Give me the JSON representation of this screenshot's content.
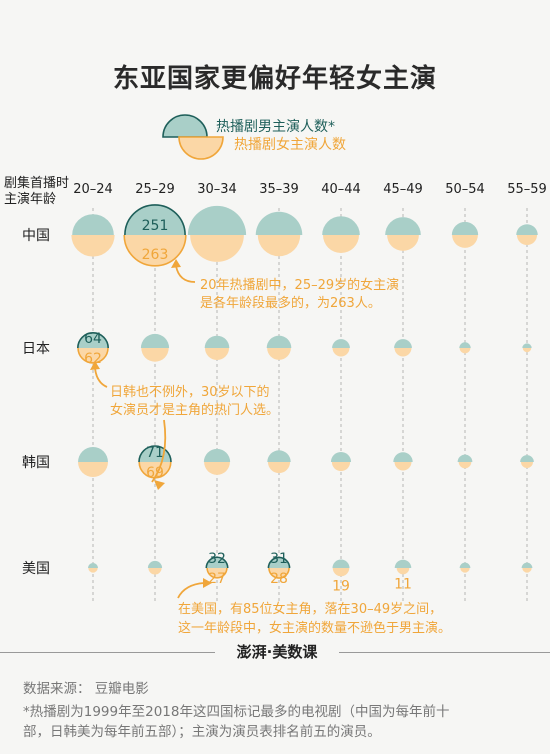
{
  "title": "东亚国家更偏好年轻女主演",
  "legend": {
    "male": "热播剧男主演人数*",
    "female": "热播剧女主演人数"
  },
  "axis_header": [
    "剧集首播时",
    "主演年龄"
  ],
  "colors": {
    "male_fill": "#a9cfc8",
    "male_stroke": "#1e5f5a",
    "female_fill": "#fbd7a6",
    "annotation": "#f0a63a"
  },
  "annotations": {
    "china": [
      "20年热播剧中，25–29岁的女主演",
      "是各年龄段最多的，为263人。"
    ],
    "japan_korea": [
      "日韩也不例外，30岁以下的",
      "女演员才是主角的热门人选。"
    ],
    "usa": [
      "在美国，有85位女主角，落在30–49岁之间，",
      "这一年龄段中，女主演的数量不逊色于男主演。"
    ]
  },
  "brand": "澎湃·美数课",
  "source": "数据来源：  豆瓣电影",
  "note_lines": [
    "*热播剧为1999年至2018年这四国标记最多的电视剧（中国为每年前十",
    "部，日韩美为每年前五部）；主演为演员表排名前五的演员。"
  ],
  "chart_data": {
    "type": "split-bubble",
    "categories": [
      "20–24",
      "25–29",
      "30–34",
      "35–39",
      "40–44",
      "45–49",
      "50–54",
      "55–59"
    ],
    "series": [
      {
        "name": "中国",
        "male": [
          120,
          251,
          235,
          150,
          98,
          88,
          48,
          32
        ],
        "female": [
          130,
          263,
          200,
          125,
          90,
          70,
          46,
          28
        ]
      },
      {
        "name": "日本",
        "male": [
          64,
          55,
          42,
          42,
          22,
          22,
          9,
          6
        ],
        "female": [
          62,
          52,
          40,
          39,
          20,
          20,
          8,
          5
        ]
      },
      {
        "name": "韩国",
        "male": [
          62,
          71,
          48,
          38,
          28,
          26,
          15,
          13
        ],
        "female": [
          62,
          69,
          46,
          34,
          23,
          20,
          11,
          10
        ]
      },
      {
        "name": "美国",
        "male": [
          7,
          14,
          32,
          31,
          20,
          19,
          8,
          8
        ],
        "female": [
          6,
          12,
          27,
          28,
          19,
          11,
          6,
          6
        ]
      }
    ],
    "labeled_values": {
      "中国": {
        "male": [
          null,
          251,
          null,
          null,
          null,
          null,
          null,
          null
        ],
        "female": [
          null,
          263,
          null,
          null,
          null,
          null,
          null,
          null
        ]
      },
      "日本": {
        "male": [
          64,
          null,
          null,
          null,
          null,
          null,
          null,
          null
        ],
        "female": [
          62,
          null,
          null,
          null,
          null,
          null,
          null,
          null
        ]
      },
      "韩国": {
        "male": [
          null,
          71,
          null,
          null,
          null,
          null,
          null,
          null
        ],
        "female": [
          null,
          69,
          null,
          null,
          null,
          null,
          null,
          null
        ]
      },
      "美国": {
        "male": [
          null,
          null,
          32,
          31,
          null,
          null,
          null,
          null
        ],
        "female": [
          null,
          null,
          27,
          28,
          19,
          11,
          null,
          null
        ]
      }
    }
  }
}
